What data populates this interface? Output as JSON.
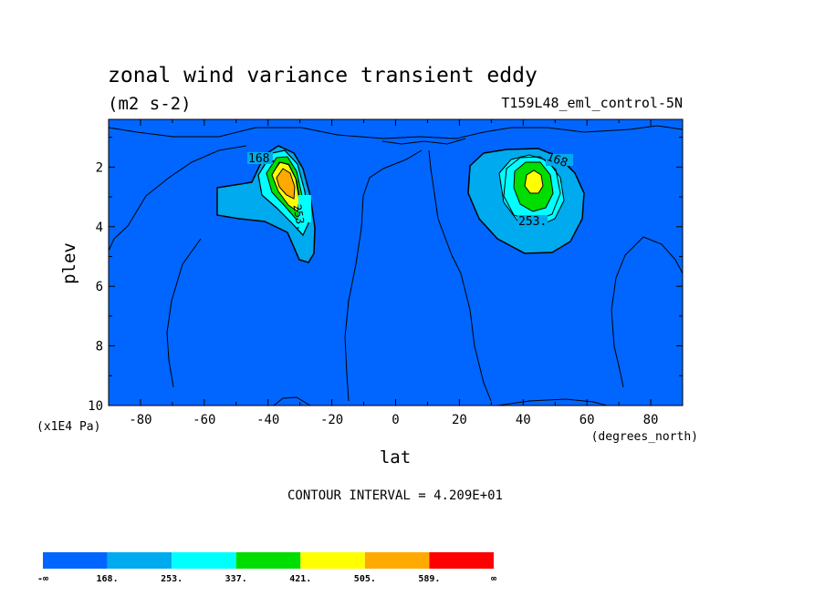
{
  "chart_data": {
    "type": "contour",
    "title": "zonal wind variance transient eddy",
    "units": "(m2 s-2)",
    "run_label": "T159L48_eml_control-5N",
    "xlabel": "lat",
    "x_units": "(degrees_north)",
    "ylabel": "plev",
    "y_units": "(x1E4 Pa)",
    "xlim": [
      -90,
      90
    ],
    "ylim": [
      10,
      0.4
    ],
    "x_ticks": [
      -80,
      -60,
      -40,
      -20,
      0,
      20,
      40,
      60,
      80
    ],
    "y_ticks": [
      2,
      4,
      6,
      8,
      10
    ],
    "contour_interval_text": "CONTOUR INTERVAL = 4.209E+01",
    "contour_labels": [
      "168.",
      "253.",
      "168.",
      "253."
    ],
    "colorbar": {
      "labels": [
        "-∞",
        "168.",
        "253.",
        "337.",
        "421.",
        "505.",
        "589.",
        "∞"
      ],
      "colors": [
        "#0066ff",
        "#00aaee",
        "#00ffff",
        "#00dd00",
        "#ffff00",
        "#ffaa00",
        "#ff0000"
      ]
    },
    "maxima": [
      {
        "lat": -35,
        "plev": 2.3,
        "value": 550
      },
      {
        "lat": 42,
        "plev": 2.4,
        "value": 430
      }
    ]
  }
}
